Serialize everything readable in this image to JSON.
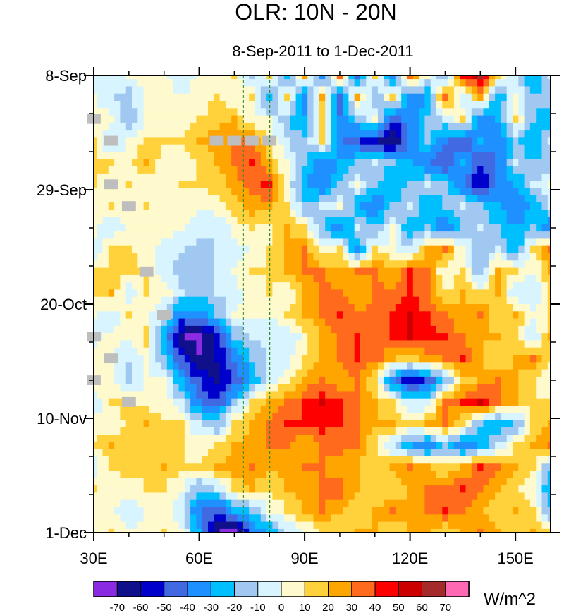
{
  "chart_data": {
    "type": "heatmap",
    "title": "OLR: 10N - 20N",
    "subtitle": "8-Sep-2011 to 1-Dec-2011",
    "xlabel": "",
    "ylabel": "",
    "xlim": [
      30,
      160
    ],
    "ylim_days": [
      0,
      84
    ],
    "x_ticks": [
      {
        "value": 30,
        "label": "30E"
      },
      {
        "value": 60,
        "label": "60E"
      },
      {
        "value": 90,
        "label": "90E"
      },
      {
        "value": 120,
        "label": "120E"
      },
      {
        "value": 150,
        "label": "150E"
      }
    ],
    "y_ticks": [
      {
        "day": 0,
        "label": "8-Sep"
      },
      {
        "day": 21,
        "label": "29-Sep"
      },
      {
        "day": 42,
        "label": "20-Oct"
      },
      {
        "day": 63,
        "label": "10-Nov"
      },
      {
        "day": 84,
        "label": "1-Dec"
      }
    ],
    "reference_lines_lon": [
      72.5,
      80
    ],
    "reference_line_color": "#2e8b2e",
    "units": "W/m^2",
    "colorbar": {
      "labels": [
        "-70",
        "-60",
        "-50",
        "-40",
        "-30",
        "-20",
        "-10",
        "0",
        "10",
        "20",
        "30",
        "40",
        "50",
        "60",
        "70"
      ],
      "colors": [
        "#8a2be2",
        "#10108a",
        "#0000cd",
        "#4169e1",
        "#1e90ff",
        "#00bfff",
        "#a0c8f0",
        "#d8f4ff",
        "#fffacd",
        "#ffd23c",
        "#ffa500",
        "#ff6a1c",
        "#ff0000",
        "#cc0000",
        "#a52a2a",
        "#ff69b4"
      ]
    },
    "anomaly_field": {
      "grid_lon_start": 30,
      "grid_lon_step": 5,
      "grid_day_start": 0,
      "grid_day_step": 4,
      "values": [
        [
          -5,
          -10,
          0,
          5,
          0,
          -5,
          0,
          5,
          10,
          -20,
          10,
          -30,
          20,
          -40,
          30,
          -50,
          10,
          -40,
          30,
          0,
          -20,
          40,
          60,
          10,
          -10,
          -30,
          -10
        ],
        [
          0,
          -10,
          -15,
          5,
          5,
          0,
          5,
          10,
          0,
          10,
          -30,
          10,
          -40,
          20,
          -45,
          20,
          -20,
          10,
          -40,
          -30,
          30,
          -10,
          20,
          -30,
          0,
          -20,
          -15
        ],
        [
          5,
          5,
          -20,
          0,
          5,
          5,
          10,
          15,
          20,
          0,
          0,
          -20,
          -30,
          10,
          -40,
          -20,
          0,
          -50,
          -35,
          -20,
          -10,
          10,
          -40,
          -30,
          10,
          -20,
          -30
        ],
        [
          10,
          -15,
          0,
          15,
          10,
          10,
          20,
          25,
          30,
          35,
          10,
          -10,
          -20,
          10,
          -40,
          -50,
          -60,
          -70,
          -40,
          -20,
          -40,
          -50,
          -30,
          -40,
          -20,
          -30,
          -10
        ],
        [
          15,
          10,
          5,
          20,
          5,
          5,
          10,
          20,
          30,
          40,
          20,
          0,
          -20,
          -40,
          -30,
          -20,
          -10,
          -20,
          -30,
          -40,
          -50,
          -30,
          -50,
          -40,
          -10,
          -20,
          -15
        ],
        [
          10,
          5,
          10,
          5,
          0,
          10,
          10,
          15,
          25,
          35,
          45,
          0,
          -30,
          -40,
          -20,
          0,
          -20,
          -30,
          -20,
          -10,
          -20,
          -40,
          -60,
          -40,
          -30,
          -10,
          0
        ],
        [
          0,
          10,
          0,
          10,
          5,
          5,
          0,
          5,
          15,
          25,
          25,
          10,
          -20,
          -10,
          0,
          -30,
          -40,
          -20,
          -10,
          -30,
          -20,
          -10,
          -20,
          -30,
          -40,
          -30,
          -10
        ],
        [
          5,
          -10,
          5,
          5,
          5,
          0,
          -5,
          -10,
          5,
          10,
          5,
          20,
          10,
          -20,
          -40,
          -10,
          -20,
          0,
          -30,
          -20,
          -40,
          -20,
          -10,
          -20,
          -30,
          -20,
          -40
        ],
        [
          -10,
          15,
          10,
          5,
          -5,
          -10,
          -15,
          -10,
          -5,
          0,
          10,
          20,
          30,
          0,
          10,
          -40,
          10,
          0,
          -10,
          20,
          30,
          0,
          -20,
          -10,
          -30,
          10,
          30
        ],
        [
          10,
          10,
          15,
          10,
          -5,
          -15,
          -20,
          -10,
          0,
          10,
          10,
          20,
          30,
          30,
          20,
          30,
          30,
          20,
          40,
          30,
          0,
          10,
          -20,
          20,
          10,
          0,
          20
        ],
        [
          15,
          20,
          -10,
          10,
          5,
          -10,
          -20,
          -10,
          -5,
          5,
          10,
          0,
          20,
          35,
          30,
          20,
          30,
          35,
          40,
          30,
          10,
          20,
          10,
          20,
          -10,
          -10,
          10
        ],
        [
          0,
          -10,
          10,
          5,
          -10,
          -40,
          -35,
          -20,
          0,
          5,
          0,
          10,
          20,
          30,
          40,
          35,
          30,
          40,
          50,
          40,
          30,
          20,
          30,
          10,
          20,
          0,
          10
        ],
        [
          -5,
          5,
          0,
          15,
          -30,
          -70,
          -75,
          -60,
          -20,
          -10,
          -5,
          -10,
          5,
          20,
          30,
          40,
          30,
          40,
          50,
          45,
          40,
          30,
          20,
          20,
          10,
          -10,
          20
        ],
        [
          5,
          0,
          -10,
          5,
          -20,
          -50,
          -70,
          -60,
          -40,
          -20,
          -10,
          -5,
          10,
          25,
          30,
          40,
          35,
          20,
          10,
          25,
          30,
          40,
          20,
          10,
          20,
          30,
          10
        ],
        [
          10,
          5,
          -15,
          0,
          0,
          -30,
          -50,
          -65,
          -50,
          -30,
          -5,
          5,
          20,
          30,
          20,
          30,
          10,
          -40,
          -60,
          -50,
          -20,
          10,
          20,
          30,
          20,
          10,
          0
        ],
        [
          -10,
          10,
          10,
          5,
          5,
          -10,
          -40,
          -50,
          -20,
          10,
          20,
          30,
          40,
          50,
          40,
          30,
          20,
          10,
          -10,
          -10,
          30,
          40,
          50,
          30,
          20,
          10,
          10
        ],
        [
          5,
          0,
          15,
          20,
          10,
          10,
          -10,
          -20,
          10,
          20,
          30,
          40,
          40,
          45,
          40,
          30,
          20,
          20,
          10,
          20,
          30,
          10,
          -20,
          -30,
          -20,
          10,
          20
        ],
        [
          10,
          20,
          10,
          10,
          15,
          10,
          5,
          10,
          20,
          25,
          30,
          30,
          20,
          30,
          35,
          30,
          10,
          -10,
          -30,
          -40,
          -20,
          -40,
          -30,
          -10,
          10,
          20,
          30
        ],
        [
          -5,
          10,
          15,
          10,
          20,
          10,
          10,
          20,
          25,
          30,
          20,
          25,
          30,
          30,
          20,
          20,
          10,
          20,
          30,
          20,
          10,
          20,
          40,
          30,
          20,
          10,
          -20
        ],
        [
          10,
          0,
          5,
          10,
          10,
          0,
          -20,
          -10,
          10,
          20,
          10,
          20,
          25,
          30,
          35,
          20,
          10,
          15,
          20,
          30,
          35,
          40,
          30,
          20,
          10,
          0,
          -30
        ],
        [
          0,
          5,
          -10,
          0,
          5,
          -10,
          -40,
          -50,
          -30,
          -20,
          0,
          10,
          20,
          30,
          20,
          10,
          20,
          30,
          20,
          30,
          40,
          30,
          20,
          10,
          20,
          10,
          -20
        ],
        [
          5,
          10,
          0,
          5,
          10,
          0,
          -30,
          -70,
          -75,
          -40,
          -30,
          -10,
          0,
          10,
          10,
          20,
          20,
          10,
          20,
          20,
          10,
          20,
          30,
          20,
          10,
          20,
          10
        ]
      ],
      "missing_cells": [
        {
          "lon": 30,
          "day": 8
        },
        {
          "lon": 35,
          "day": 12
        },
        {
          "lon": 65,
          "day": 12
        },
        {
          "lon": 70,
          "day": 12
        },
        {
          "lon": 75,
          "day": 12
        },
        {
          "lon": 80,
          "day": 12
        },
        {
          "lon": 35,
          "day": 20
        },
        {
          "lon": 40,
          "day": 24
        },
        {
          "lon": 45,
          "day": 36
        },
        {
          "lon": 50,
          "day": 44
        },
        {
          "lon": 30,
          "day": 48
        },
        {
          "lon": 35,
          "day": 52
        },
        {
          "lon": 30,
          "day": 56
        },
        {
          "lon": 40,
          "day": 60
        }
      ],
      "missing_color": "#bebebe"
    }
  }
}
